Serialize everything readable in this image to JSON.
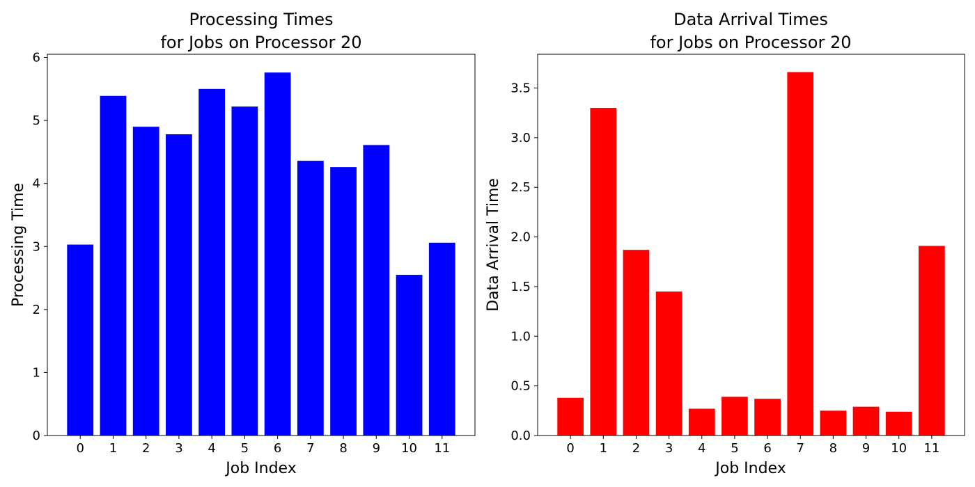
{
  "chart_data": [
    {
      "type": "bar",
      "title": [
        "Processing Times",
        "for Jobs on Processor 20"
      ],
      "xlabel": "Job Index",
      "ylabel": "Processing Time",
      "categories": [
        "0",
        "1",
        "2",
        "3",
        "4",
        "5",
        "6",
        "7",
        "8",
        "9",
        "10",
        "11"
      ],
      "values": [
        3.03,
        5.39,
        4.9,
        4.78,
        5.5,
        5.22,
        5.76,
        4.36,
        4.26,
        4.61,
        2.55,
        3.06
      ],
      "ylim": [
        0,
        6.05
      ],
      "yticks": [
        0,
        1,
        2,
        3,
        4,
        5,
        6
      ],
      "ytick_labels": [
        "0",
        "1",
        "2",
        "3",
        "4",
        "5",
        "6"
      ],
      "color": "#0000ff",
      "grid": false,
      "legend": "none"
    },
    {
      "type": "bar",
      "title": [
        "Data Arrival Times",
        "for Jobs on Processor 20"
      ],
      "xlabel": "Job Index",
      "ylabel": "Data Arrival Time",
      "categories": [
        "0",
        "1",
        "2",
        "3",
        "4",
        "5",
        "6",
        "7",
        "8",
        "9",
        "10",
        "11"
      ],
      "values": [
        0.38,
        3.3,
        1.87,
        1.45,
        0.27,
        0.39,
        0.37,
        3.66,
        0.25,
        0.29,
        0.24,
        1.91
      ],
      "ylim": [
        0,
        3.84
      ],
      "yticks": [
        0,
        0.5,
        1.0,
        1.5,
        2.0,
        2.5,
        3.0,
        3.5
      ],
      "ytick_labels": [
        "0.0",
        "0.5",
        "1.0",
        "1.5",
        "2.0",
        "2.5",
        "3.0",
        "3.5"
      ],
      "color": "#ff0000",
      "grid": false,
      "legend": "none"
    }
  ]
}
